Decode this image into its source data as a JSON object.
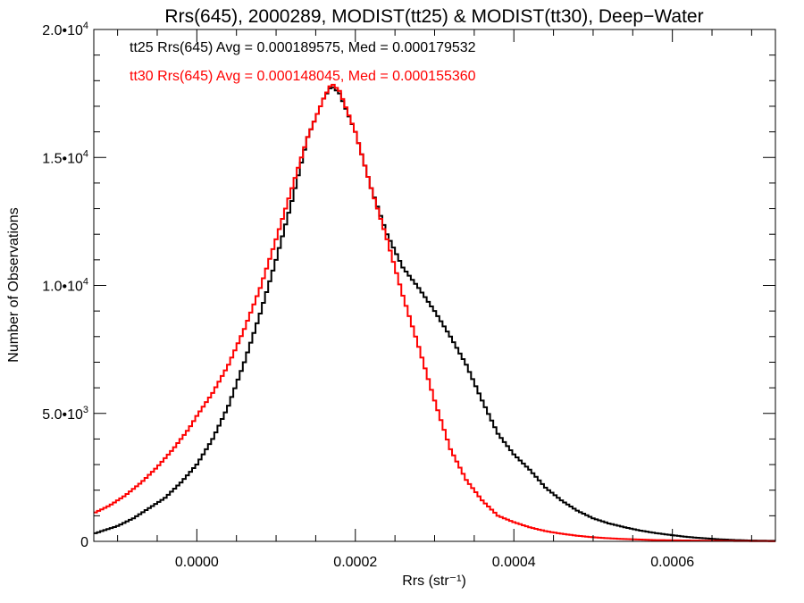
{
  "chart_data": {
    "type": "line",
    "title": "Rrs(645), 2000289, MODIST(tt25) & MODIST(tt30), Deep−Water",
    "xlabel": "Rrs (str⁻¹)",
    "ylabel": "Number of Observations",
    "xlim": [
      -0.00013,
      0.00073
    ],
    "ylim": [
      0,
      20000
    ],
    "x_ticks": [
      {
        "value": 0.0,
        "label": "0.0000"
      },
      {
        "value": 0.0002,
        "label": "0.0002"
      },
      {
        "value": 0.0004,
        "label": "0.0004"
      },
      {
        "value": 0.0006,
        "label": "0.0006"
      }
    ],
    "y_ticks": [
      {
        "value": 0,
        "mant": "0",
        "exp": ""
      },
      {
        "value": 5000,
        "mant": "5.0•10",
        "exp": "3"
      },
      {
        "value": 10000,
        "mant": "1.0•10",
        "exp": "4"
      },
      {
        "value": 15000,
        "mant": "1.5•10",
        "exp": "4"
      },
      {
        "value": 20000,
        "mant": "2.0•10",
        "exp": "4"
      }
    ],
    "grid": false,
    "series": [
      {
        "name": "tt25",
        "color": "#000000",
        "step": "hist",
        "annotation": "tt25 Rrs(645) Avg = 0.000189575, Med = 0.000179532",
        "points": [
          [
            -0.00013,
            300
          ],
          [
            -0.0001,
            600
          ],
          [
            -8e-05,
            900
          ],
          [
            -6e-05,
            1300
          ],
          [
            -4e-05,
            1700
          ],
          [
            -2e-05,
            2300
          ],
          [
            0.0,
            3000
          ],
          [
            2e-05,
            4000
          ],
          [
            4e-05,
            5300
          ],
          [
            6e-05,
            7000
          ],
          [
            8e-05,
            8900
          ],
          [
            0.0001,
            11000
          ],
          [
            0.00012,
            13300
          ],
          [
            0.00014,
            15800
          ],
          [
            0.00016,
            17300
          ],
          [
            0.00017,
            17800
          ],
          [
            0.00018,
            17500
          ],
          [
            0.0002,
            16000
          ],
          [
            0.00022,
            13800
          ],
          [
            0.00024,
            12000
          ],
          [
            0.00026,
            10700
          ],
          [
            0.00028,
            9900
          ],
          [
            0.0003,
            9000
          ],
          [
            0.00032,
            8000
          ],
          [
            0.00034,
            6900
          ],
          [
            0.00036,
            5500
          ],
          [
            0.00038,
            4200
          ],
          [
            0.0004,
            3400
          ],
          [
            0.00042,
            2800
          ],
          [
            0.00044,
            2100
          ],
          [
            0.00046,
            1600
          ],
          [
            0.00048,
            1200
          ],
          [
            0.0005,
            900
          ],
          [
            0.00052,
            700
          ],
          [
            0.00054,
            550
          ],
          [
            0.00056,
            420
          ],
          [
            0.00058,
            320
          ],
          [
            0.0006,
            240
          ],
          [
            0.00062,
            170
          ],
          [
            0.00064,
            120
          ],
          [
            0.00066,
            80
          ],
          [
            0.00068,
            50
          ],
          [
            0.0007,
            30
          ],
          [
            0.00073,
            20
          ]
        ]
      },
      {
        "name": "tt30",
        "color": "#ff0000",
        "step": "hist",
        "annotation": "tt30 Rrs(645) Avg = 0.000148045, Med = 0.000155360",
        "points": [
          [
            -0.00013,
            1100
          ],
          [
            -0.00011,
            1400
          ],
          [
            -9e-05,
            1800
          ],
          [
            -7e-05,
            2300
          ],
          [
            -5e-05,
            2900
          ],
          [
            -3e-05,
            3600
          ],
          [
            -1e-05,
            4400
          ],
          [
            0.0,
            4900
          ],
          [
            2e-05,
            5800
          ],
          [
            4e-05,
            6900
          ],
          [
            6e-05,
            8300
          ],
          [
            8e-05,
            9900
          ],
          [
            0.0001,
            11800
          ],
          [
            0.00012,
            13800
          ],
          [
            0.00014,
            15800
          ],
          [
            0.00016,
            17300
          ],
          [
            0.00017,
            17900
          ],
          [
            0.00018,
            17600
          ],
          [
            0.0002,
            16000
          ],
          [
            0.00022,
            13800
          ],
          [
            0.00024,
            11800
          ],
          [
            0.00026,
            9600
          ],
          [
            0.00028,
            7600
          ],
          [
            0.0003,
            5500
          ],
          [
            0.00032,
            3600
          ],
          [
            0.00034,
            2400
          ],
          [
            0.00036,
            1600
          ],
          [
            0.00038,
            1000
          ],
          [
            0.0004,
            750
          ],
          [
            0.00042,
            550
          ],
          [
            0.00044,
            400
          ],
          [
            0.00046,
            300
          ],
          [
            0.00048,
            220
          ],
          [
            0.0005,
            160
          ],
          [
            0.00052,
            120
          ],
          [
            0.00054,
            90
          ],
          [
            0.00056,
            70
          ],
          [
            0.00058,
            50
          ],
          [
            0.0006,
            40
          ],
          [
            0.00063,
            30
          ],
          [
            0.00066,
            20
          ],
          [
            0.0007,
            10
          ],
          [
            0.00073,
            5
          ]
        ]
      }
    ]
  }
}
